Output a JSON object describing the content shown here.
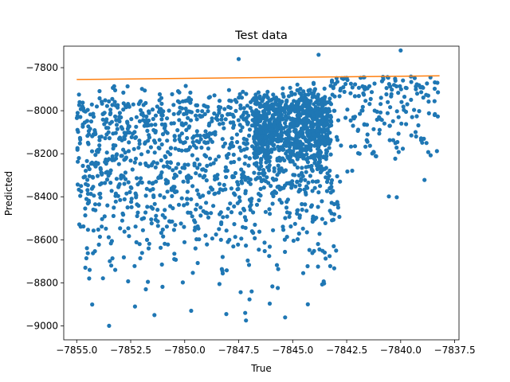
{
  "chart_data": {
    "type": "scatter",
    "title": "Test data",
    "xlabel": "True",
    "ylabel": "Predicted",
    "xlim": [
      -7855.6,
      -7837.3
    ],
    "ylim": [
      -9065,
      -7700
    ],
    "xticks": [
      -7855.0,
      -7852.5,
      -7850.0,
      -7847.5,
      -7845.0,
      -7842.5,
      -7840.0,
      -7837.5
    ],
    "xtick_labels": [
      "−7855.0",
      "−7852.5",
      "−7850.0",
      "−7847.5",
      "−7845.0",
      "−7842.5",
      "−7840.0",
      "−7837.5"
    ],
    "yticks": [
      -9000,
      -8800,
      -8600,
      -8400,
      -8200,
      -8000,
      -7800
    ],
    "ytick_labels": [
      "−9000",
      "−8800",
      "−8600",
      "−8400",
      "−8200",
      "−8000",
      "−7800"
    ],
    "grid": false,
    "colors": {
      "points": "#1f77b4",
      "fit_line": "#ff7f0e"
    },
    "series": [
      {
        "type": "scatter",
        "x_range": [
          -7855.0,
          -7838.2
        ],
        "approx_point_count": 2200,
        "sample_points": [
          {
            "x": -7854.9,
            "y": -8220
          },
          {
            "x": -7854.8,
            "y": -8350
          },
          {
            "x": -7854.6,
            "y": -8730
          },
          {
            "x": -7854.4,
            "y": -8740
          },
          {
            "x": -7853.4,
            "y": -8720
          },
          {
            "x": -7852.3,
            "y": -8910
          },
          {
            "x": -7851.8,
            "y": -8830
          },
          {
            "x": -7851.4,
            "y": -8950
          },
          {
            "x": -7849.7,
            "y": -8930
          },
          {
            "x": -7853.5,
            "y": -9000
          },
          {
            "x": -7847.2,
            "y": -8940
          },
          {
            "x": -7846.9,
            "y": -8840
          },
          {
            "x": -7844.3,
            "y": -8900
          },
          {
            "x": -7843.1,
            "y": -8630
          },
          {
            "x": -7840.0,
            "y": -7720
          },
          {
            "x": -7838.3,
            "y": -7870
          },
          {
            "x": -7839.0,
            "y": -7890
          },
          {
            "x": -7840.6,
            "y": -7960
          },
          {
            "x": -7841.0,
            "y": -8030
          },
          {
            "x": -7841.9,
            "y": -8200
          },
          {
            "x": -7843.8,
            "y": -7740
          },
          {
            "x": -7847.5,
            "y": -7760
          },
          {
            "x": -7849.5,
            "y": -8640
          },
          {
            "x": -7848.0,
            "y": -8610
          }
        ]
      },
      {
        "type": "line",
        "x": [
          -7855.0,
          -7838.2
        ],
        "y": [
          -7855,
          -7838
        ]
      }
    ]
  }
}
